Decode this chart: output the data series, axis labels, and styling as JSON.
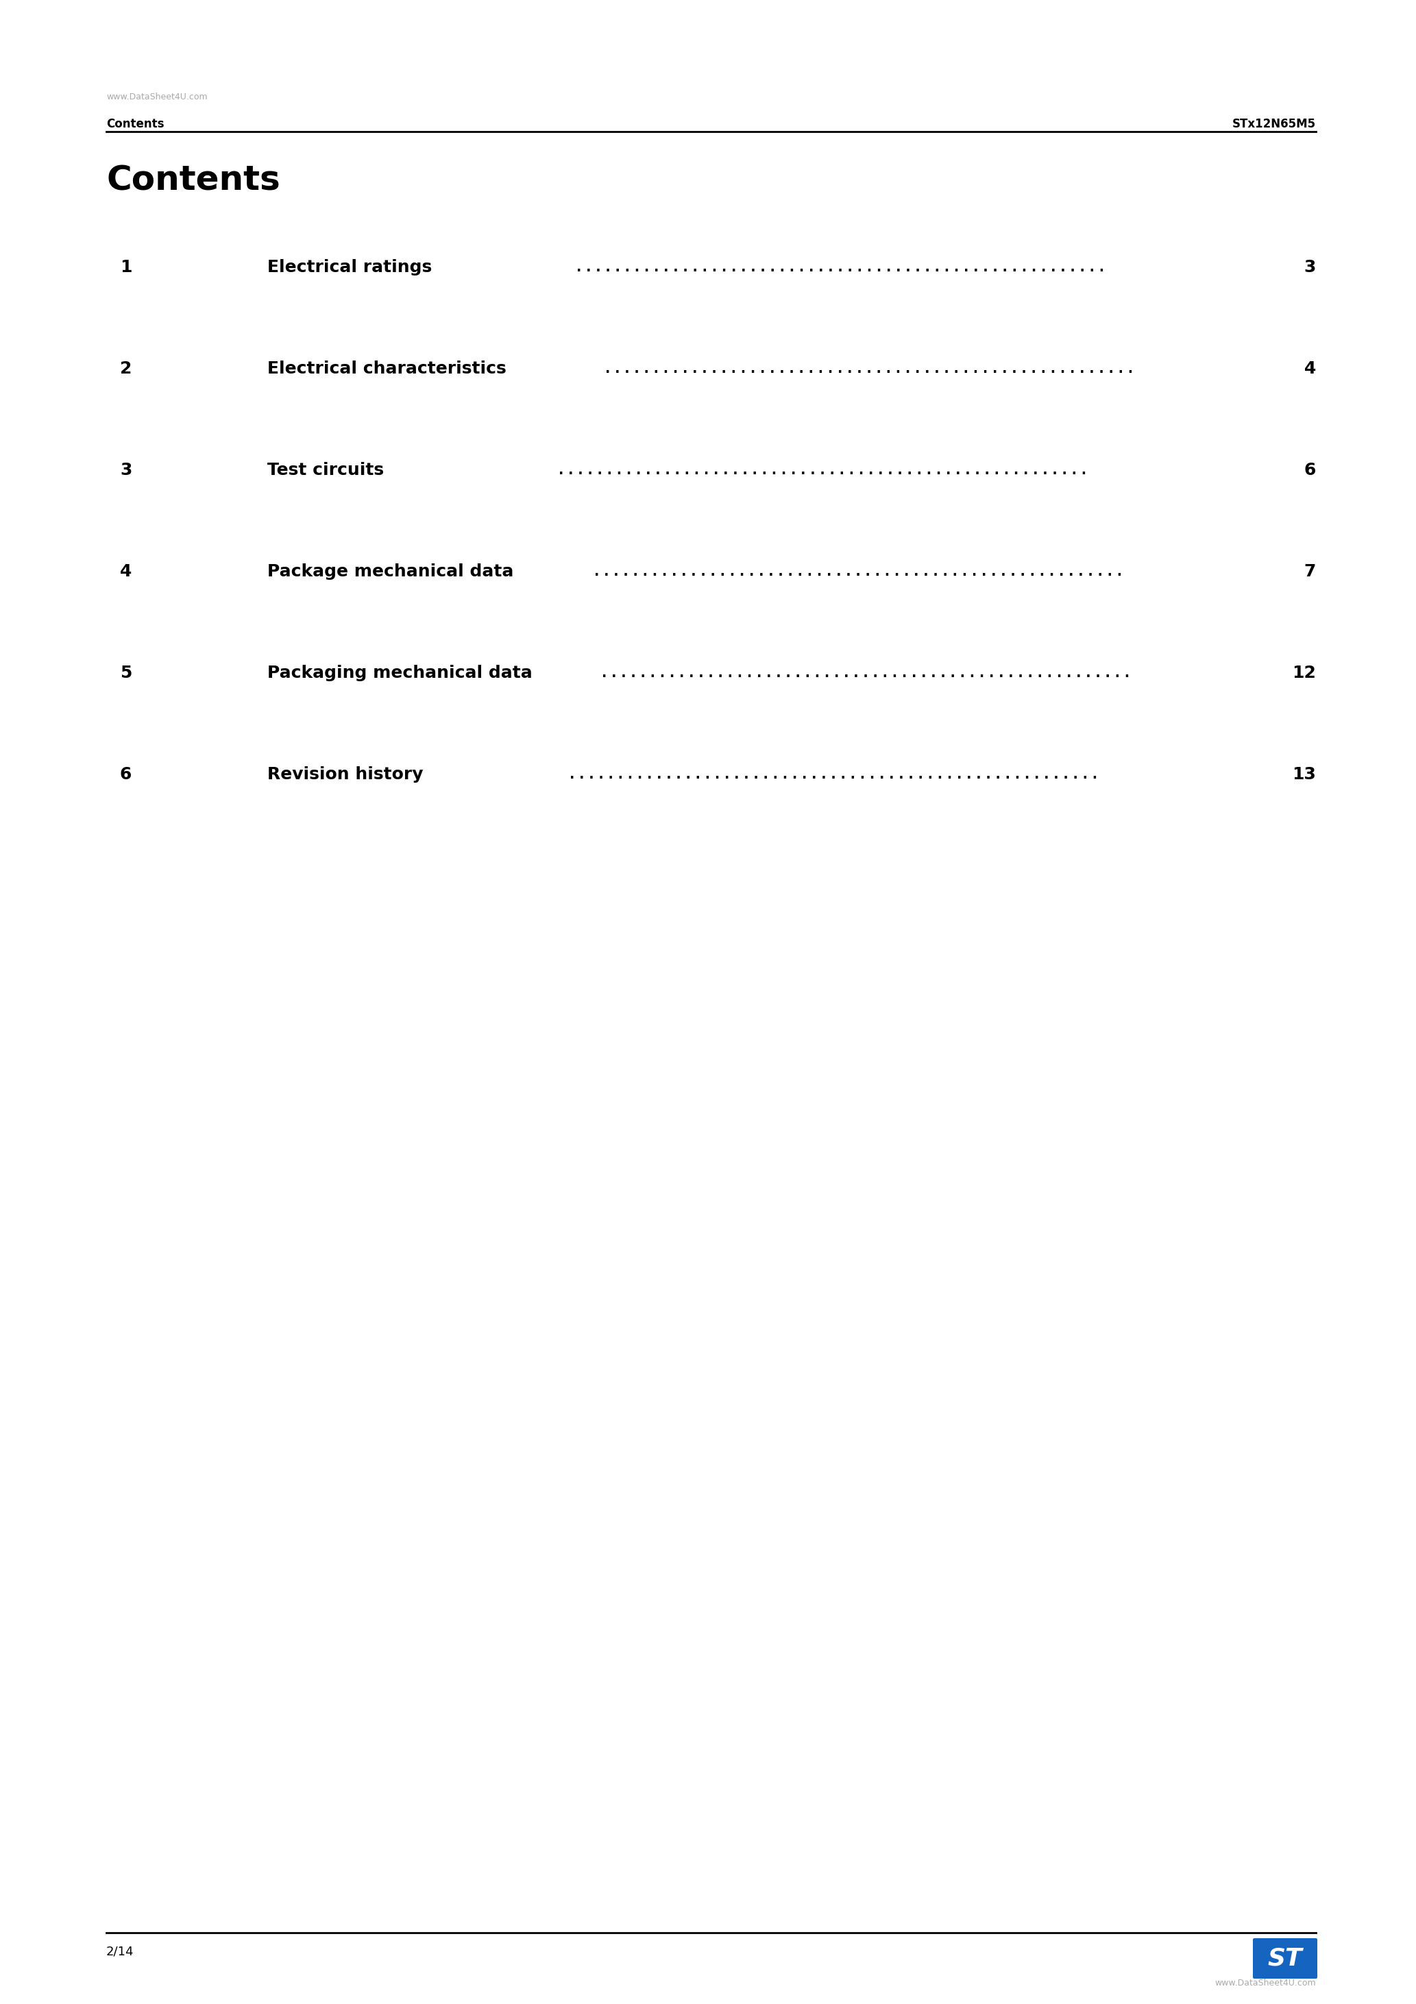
{
  "page_bg": "#ffffff",
  "header_left_watermark": "www.DataSheet4U.com",
  "header_left_bold": "Contents",
  "header_right": "STx12N65M5",
  "title": "Contents",
  "toc_entries": [
    {
      "num": "1",
      "title": "Electrical ratings",
      "page": "3"
    },
    {
      "num": "2",
      "title": "Electrical characteristics",
      "page": "4"
    },
    {
      "num": "3",
      "title": "Test circuits",
      "page": "6"
    },
    {
      "num": "4",
      "title": "Package mechanical data",
      "page": "7"
    },
    {
      "num": "5",
      "title": "Packaging mechanical data",
      "page": "12"
    },
    {
      "num": "6",
      "title": "Revision history",
      "page": "13"
    }
  ],
  "footer_left": "2/14",
  "footer_logo_color": "#1565C0",
  "footer_watermark": "www.DataSheet4U.com",
  "watermark_color": "#aaaaaa"
}
